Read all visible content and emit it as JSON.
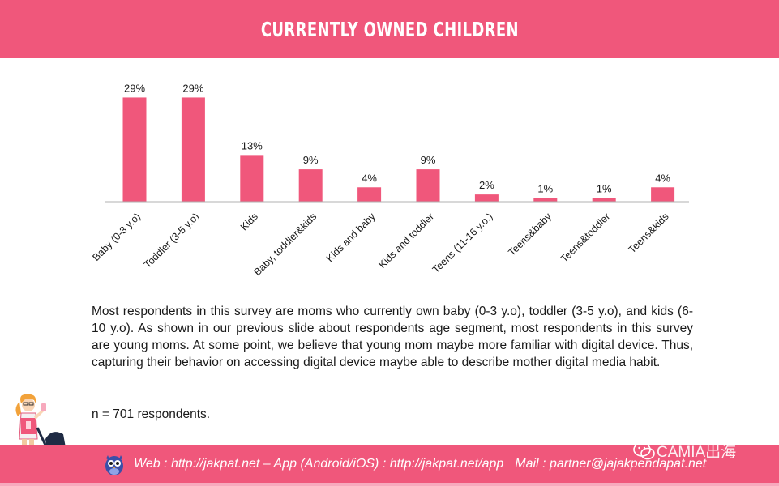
{
  "header": {
    "title": "CURRENTLY OWNED CHILDREN"
  },
  "chart_data": {
    "type": "bar",
    "title": "CURRENTLY OWNED CHILDREN",
    "categories": [
      "Baby (0-3 y.o)",
      "Toddler (3-5 y.o)",
      "Kids",
      "Baby, toddler&kids",
      "Kids and baby",
      "Kids and toddler",
      "Teens (11-16 y.o.)",
      "Teens&baby",
      "Teens&toddler",
      "Teens&kids"
    ],
    "values": [
      29,
      29,
      13,
      9,
      4,
      9,
      2,
      1,
      1,
      4
    ],
    "labels": [
      "29%",
      "29%",
      "13%",
      "9%",
      "4%",
      "9%",
      "2%",
      "1%",
      "1%",
      "4%"
    ],
    "unit": "%",
    "ylim": [
      0,
      30
    ],
    "xlabel": "",
    "ylabel": "",
    "grid": false,
    "bar_color": "#f0577b"
  },
  "description": {
    "paragraph": "Most respondents in this survey are moms who currently own baby (0-3 y.o), toddler (3-5 y.o), and kids (6-10 y.o). As shown in our previous slide about respondents age segment, most respondents in this survey are young moms. At some point, we believe that young mom maybe more familiar with digital device. Thus, capturing their behavior on accessing digital device maybe able to describe mother digital media habit.",
    "sample_size": "n = 701 respondents."
  },
  "footer": {
    "web_text": "Web : http://jakpat.net – App (Android/iOS) : http://jakpat.net/app",
    "mail_text": "Mail : partner@jajakpendapat.net",
    "watermark": "CAMIA出海"
  },
  "colors": {
    "accent": "#f0577b",
    "text": "#1a1a1a",
    "axis": "#b0b0b0"
  }
}
